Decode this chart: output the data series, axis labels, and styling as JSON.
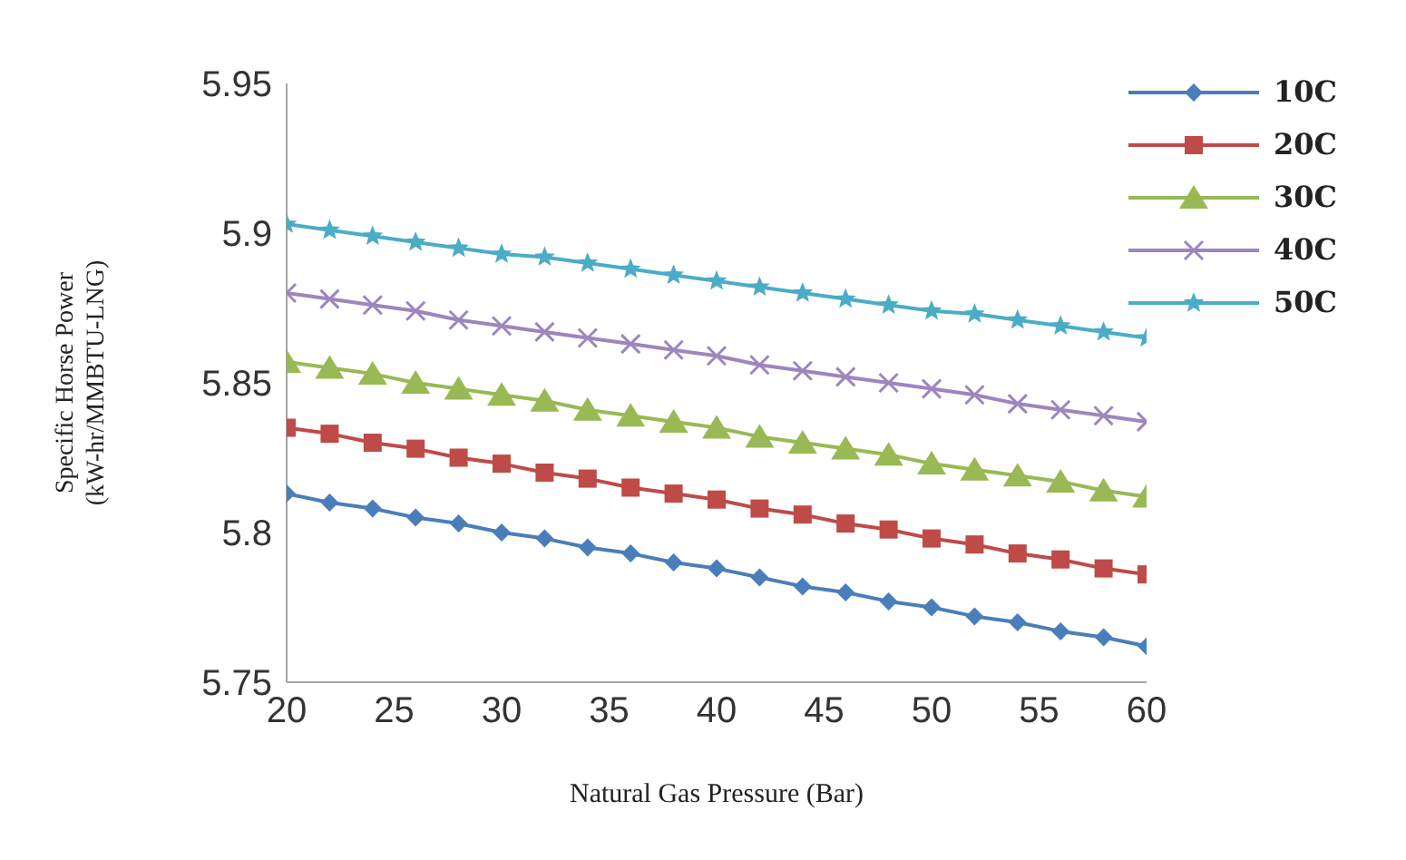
{
  "chart_data": {
    "type": "line",
    "xlabel": "Natural Gas Pressure (Bar)",
    "ylabel": "Specific Horse Power\n(kW-hr/MMBTU-LNG)",
    "x": [
      20,
      22,
      24,
      26,
      28,
      30,
      32,
      34,
      36,
      38,
      40,
      42,
      44,
      46,
      48,
      50,
      52,
      54,
      56,
      58,
      60
    ],
    "series": [
      {
        "name": "10C",
        "color": "#4a7ebb",
        "marker": "diamond",
        "values": [
          5.813,
          5.81,
          5.808,
          5.805,
          5.803,
          5.8,
          5.798,
          5.795,
          5.793,
          5.79,
          5.788,
          5.785,
          5.782,
          5.78,
          5.777,
          5.775,
          5.772,
          5.77,
          5.767,
          5.765,
          5.762
        ]
      },
      {
        "name": "20C",
        "color": "#be4b48",
        "marker": "square",
        "values": [
          5.835,
          5.833,
          5.83,
          5.828,
          5.825,
          5.823,
          5.82,
          5.818,
          5.815,
          5.813,
          5.811,
          5.808,
          5.806,
          5.803,
          5.801,
          5.798,
          5.796,
          5.793,
          5.791,
          5.788,
          5.786
        ]
      },
      {
        "name": "30C",
        "color": "#98b954",
        "marker": "triangle",
        "values": [
          5.857,
          5.855,
          5.853,
          5.85,
          5.848,
          5.846,
          5.844,
          5.841,
          5.839,
          5.837,
          5.835,
          5.832,
          5.83,
          5.828,
          5.826,
          5.823,
          5.821,
          5.819,
          5.817,
          5.814,
          5.812
        ]
      },
      {
        "name": "40C",
        "color": "#9d85be",
        "marker": "cross",
        "values": [
          5.88,
          5.878,
          5.876,
          5.874,
          5.871,
          5.869,
          5.867,
          5.865,
          5.863,
          5.861,
          5.859,
          5.856,
          5.854,
          5.852,
          5.85,
          5.848,
          5.846,
          5.843,
          5.841,
          5.839,
          5.837
        ]
      },
      {
        "name": "50C",
        "color": "#4bacc6",
        "marker": "star",
        "values": [
          5.903,
          5.901,
          5.899,
          5.897,
          5.895,
          5.893,
          5.892,
          5.89,
          5.888,
          5.886,
          5.884,
          5.882,
          5.88,
          5.878,
          5.876,
          5.874,
          5.873,
          5.871,
          5.869,
          5.867,
          5.865
        ]
      }
    ],
    "xlim": [
      20,
      60
    ],
    "xticks": [
      20,
      25,
      30,
      35,
      40,
      45,
      50,
      55,
      60
    ],
    "ylim": [
      5.75,
      5.95
    ],
    "yticks": [
      5.75,
      5.8,
      5.85,
      5.9,
      5.95
    ],
    "grid": false,
    "legend": "top right",
    "line_style": "solid"
  }
}
